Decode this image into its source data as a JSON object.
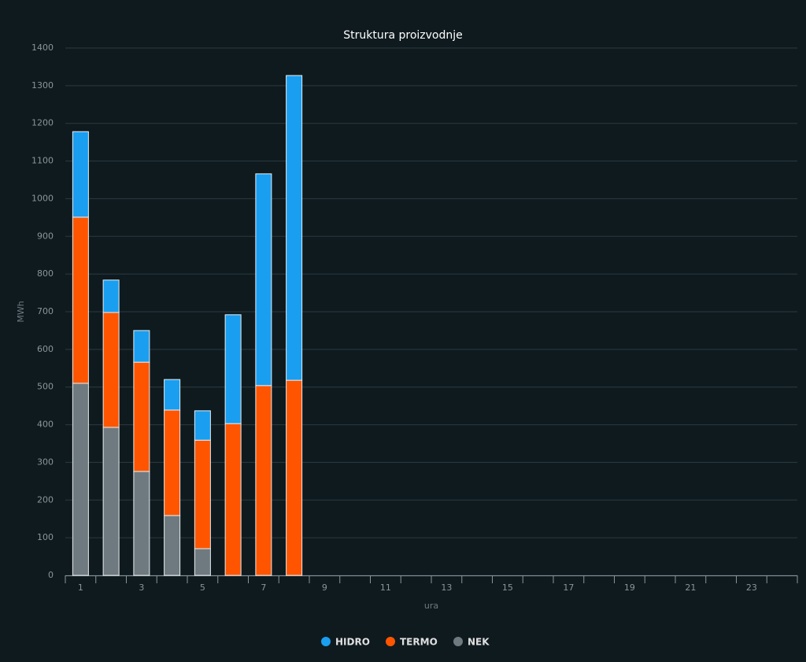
{
  "chart_data": {
    "type": "stacked_bar",
    "title": "Struktura proizvodnje",
    "x_label": "ura",
    "y_label": "MWh",
    "categories": [
      1,
      null,
      3,
      null,
      5,
      null,
      7,
      null,
      9,
      null,
      11,
      null,
      13,
      null,
      15,
      null,
      17,
      null,
      19,
      null,
      21,
      null,
      23,
      null
    ],
    "series": [
      {
        "name": "HIDRO",
        "color": "#1a9ef0",
        "values": [
          227,
          86,
          84,
          81,
          78,
          289,
          562,
          809,
          null,
          null,
          null,
          null,
          null,
          null,
          null,
          null,
          null,
          null,
          null,
          null,
          null,
          null,
          null,
          null
        ]
      },
      {
        "name": "TERMO",
        "color": "#ff5500",
        "values": [
          441,
          305,
          290,
          280,
          288,
          403,
          504,
          518,
          null,
          null,
          null,
          null,
          null,
          null,
          null,
          null,
          null,
          null,
          null,
          null,
          null,
          null,
          null,
          null
        ]
      },
      {
        "name": "NEK",
        "color": "#6f7a80",
        "values": [
          510,
          393,
          276,
          159,
          71,
          0,
          0,
          0,
          null,
          null,
          null,
          null,
          null,
          null,
          null,
          null,
          null,
          null,
          null,
          null,
          null,
          null,
          null,
          null
        ]
      }
    ],
    "ylim": [
      0,
      1400
    ],
    "yticks": [
      0,
      100,
      200,
      300,
      400,
      500,
      600,
      700,
      800,
      900,
      1000,
      1100,
      1200,
      1300,
      1400
    ],
    "grid": true,
    "legend": "bottom"
  }
}
